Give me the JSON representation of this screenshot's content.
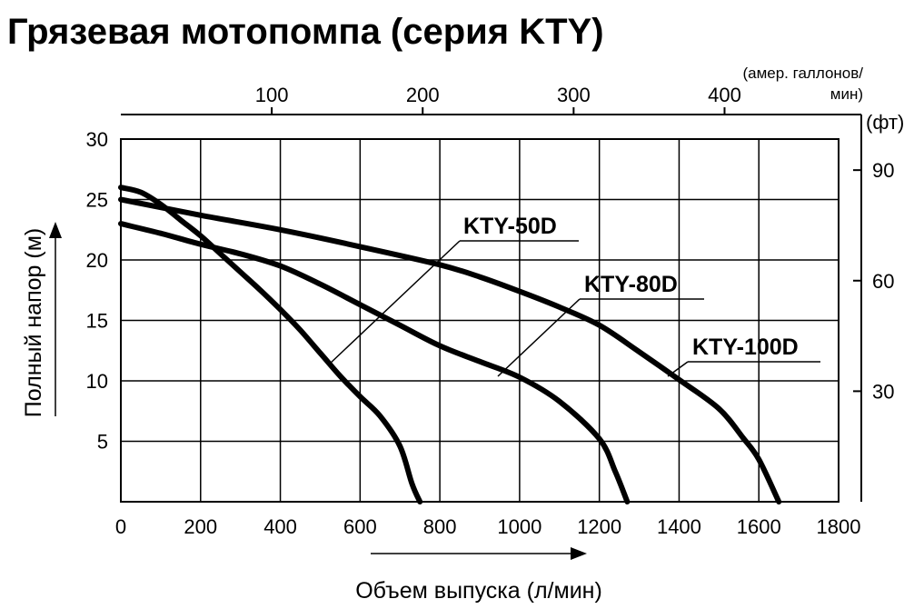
{
  "chart_data": {
    "type": "line",
    "title": "Грязевая мотопомпа (серия KTY)",
    "xlabel": "Объем выпуска (л/мин)",
    "ylabel": "Полный напор (м)",
    "xlim": [
      0,
      1800
    ],
    "ylim": [
      0,
      30
    ],
    "x_ticks": [
      "0",
      "200",
      "400",
      "600",
      "800",
      "1000",
      "1200",
      "1400",
      "1600",
      "1800"
    ],
    "y_ticks": [
      "5",
      "10",
      "15",
      "20",
      "25",
      "30"
    ],
    "grid": true,
    "top_axis": {
      "label_line1": "(амер. галлонов/",
      "label_line2": "мин)",
      "ticks": [
        "100",
        "200",
        "300",
        "400"
      ],
      "tick_values": [
        100,
        200,
        300,
        400
      ],
      "factor_l_per_gal": 3.785
    },
    "right_axis": {
      "label": "(фт)",
      "ticks": [
        "30",
        "60",
        "90"
      ],
      "tick_values": [
        30,
        60,
        90
      ],
      "factor_m_per_ft": 0.3048
    },
    "series": [
      {
        "name": "KTY-50D",
        "x": [
          0,
          50,
          100,
          150,
          200,
          250,
          300,
          350,
          400,
          450,
          500,
          550,
          600,
          650,
          700,
          730,
          750
        ],
        "y": [
          26,
          25.6,
          24.6,
          23.3,
          22,
          20.5,
          19,
          17.5,
          15.9,
          14.2,
          12.3,
          10.4,
          8.7,
          7.1,
          4.6,
          1.5,
          0
        ]
      },
      {
        "name": "KTY-80D",
        "x": [
          0,
          100,
          200,
          300,
          400,
          500,
          600,
          700,
          800,
          900,
          1000,
          1100,
          1200,
          1240,
          1270
        ],
        "y": [
          23,
          22.2,
          21.3,
          20.5,
          19.5,
          18,
          16.3,
          14.6,
          12.9,
          11.6,
          10.3,
          8.3,
          5.2,
          2.5,
          0
        ]
      },
      {
        "name": "KTY-100D",
        "x": [
          0,
          200,
          400,
          600,
          800,
          900,
          1000,
          1100,
          1200,
          1300,
          1400,
          1500,
          1560,
          1600,
          1650
        ],
        "y": [
          25,
          23.7,
          22.5,
          21.1,
          19.6,
          18.6,
          17.4,
          16.1,
          14.6,
          12.4,
          10.1,
          7.7,
          5.3,
          3.5,
          0
        ]
      }
    ],
    "annotations": [
      {
        "text": "KTY-50D",
        "series": 0
      },
      {
        "text": "KTY-80D",
        "series": 1
      },
      {
        "text": "KTY-100D",
        "series": 2
      }
    ]
  }
}
